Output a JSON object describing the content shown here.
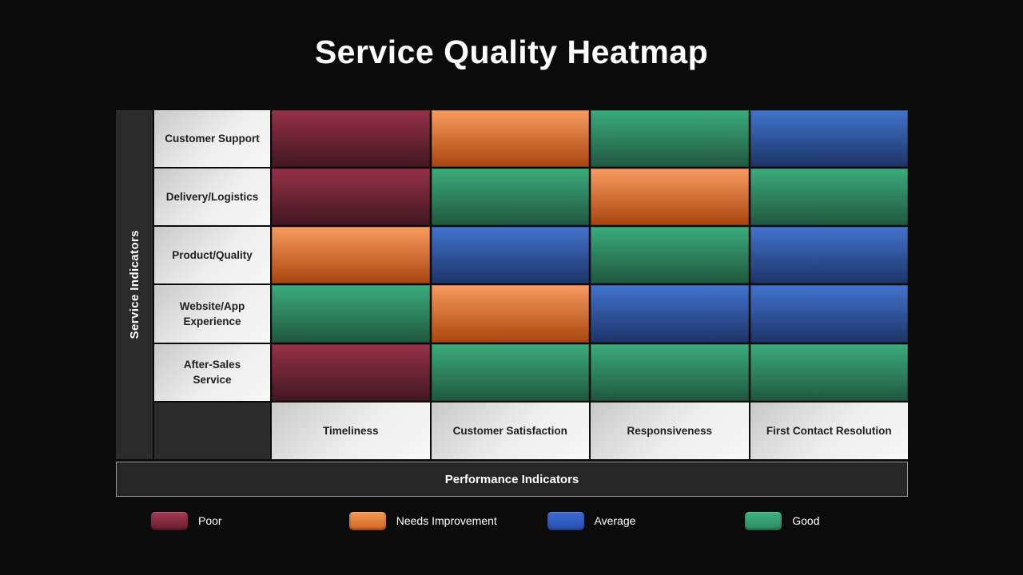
{
  "slide": {
    "title": "Service Quality Heatmap"
  },
  "chart_data": {
    "type": "heatmap",
    "title": "Service Quality Heatmap",
    "xlabel": "Performance Indicators",
    "ylabel": "Service Indicators",
    "x_categories": [
      "Timeliness",
      "Customer Satisfaction",
      "Responsiveness",
      "First Contact Resolution"
    ],
    "y_categories": [
      "Customer Support",
      "Delivery/Logistics",
      "Product/Quality",
      "Website/App Experience",
      "After-Sales Service"
    ],
    "values": [
      [
        "Poor",
        "Needs Improvement",
        "Good",
        "Average"
      ],
      [
        "Poor",
        "Good",
        "Needs Improvement",
        "Good"
      ],
      [
        "Needs Improvement",
        "Average",
        "Good",
        "Average"
      ],
      [
        "Good",
        "Needs Improvement",
        "Average",
        "Average"
      ],
      [
        "Poor",
        "Good",
        "Good",
        "Good"
      ]
    ],
    "legend": [
      "Poor",
      "Needs Improvement",
      "Average",
      "Good"
    ],
    "legend_position": "bottom",
    "scale": "categorical",
    "grid": false,
    "levels": {
      "Poor": {
        "cell_top": "#963149",
        "cell_bottom": "#401721",
        "swatch_top": "#a23a53",
        "swatch_bottom": "#6b1d2e"
      },
      "Needs Improvement": {
        "cell_top": "#f79d5f",
        "cell_bottom": "#aa440e",
        "swatch_top": "#f39a5c",
        "swatch_bottom": "#d4661f"
      },
      "Average": {
        "cell_top": "#4274cd",
        "cell_bottom": "#1d3367",
        "swatch_top": "#3c68cf",
        "swatch_bottom": "#2a52b4"
      },
      "Good": {
        "cell_top": "#3bac7c",
        "cell_bottom": "#205740",
        "swatch_top": "#3fb080",
        "swatch_bottom": "#2e8b63"
      }
    }
  },
  "theme": {
    "background": "#0b0b0b",
    "panel_dark": "#2b2b2b",
    "bar_dark": "#262626",
    "bar_border": "#9a9a9a",
    "header_light_from": "#c9c9c9",
    "header_light_to": "#f8f8f8",
    "text_dark": "#1f1f1f",
    "text_light": "#ffffff"
  }
}
